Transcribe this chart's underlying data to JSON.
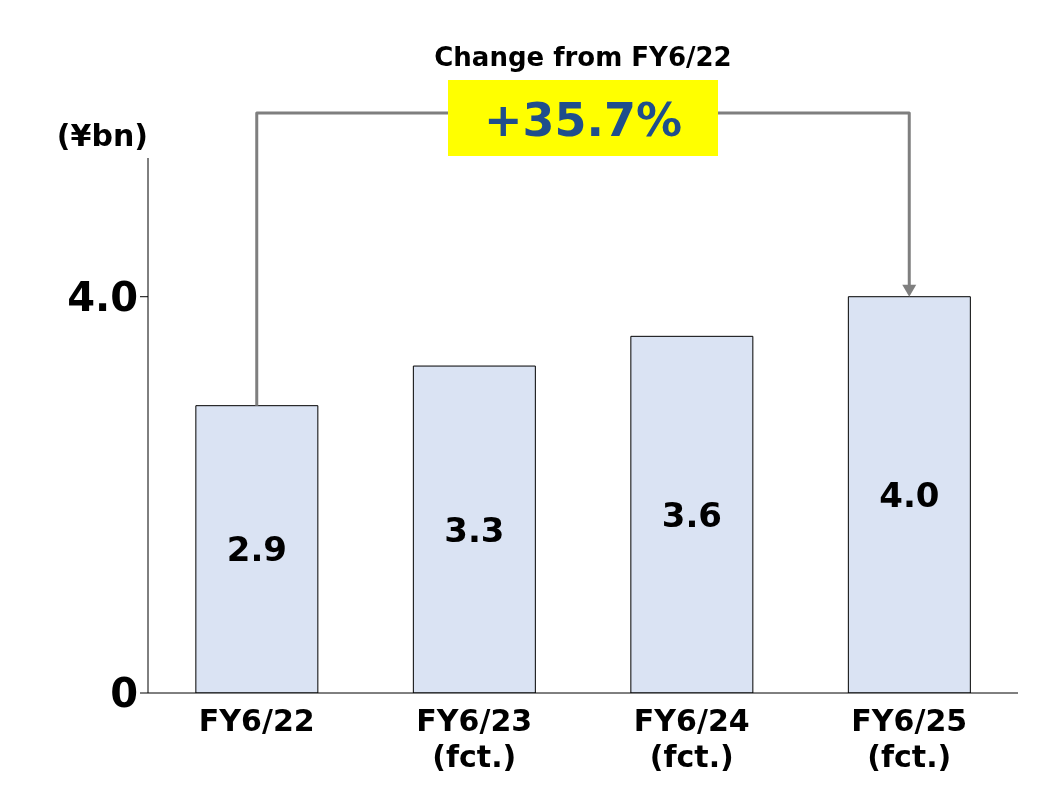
{
  "chart_data": {
    "type": "bar",
    "ylabel": "(¥bn)",
    "categories": [
      "FY6/22",
      "FY6/23 (fct.)",
      "FY6/24 (fct.)",
      "FY6/25 (fct.)"
    ],
    "values": [
      2.9,
      3.3,
      3.6,
      4.0
    ],
    "value_labels": [
      "2.9",
      "3.3",
      "3.6",
      "4.0"
    ],
    "color": "#dae3f3",
    "ylim": [
      0,
      5.4
    ],
    "yticks": [
      0,
      {
        "value": 4,
        "label": "4.0"
      }
    ],
    "grid": false,
    "annotations": [
      "Change from FY6/22",
      "+35.7%"
    ]
  }
}
